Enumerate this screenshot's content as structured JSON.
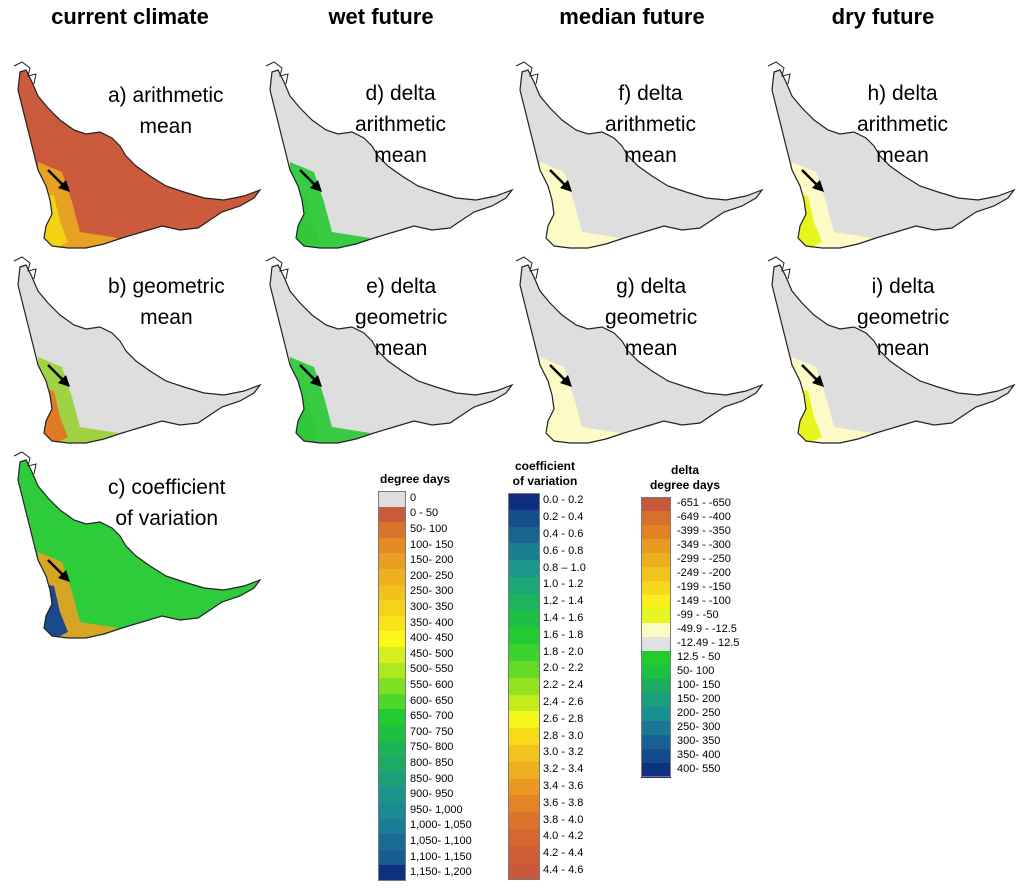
{
  "column_titles": [
    "current climate",
    "wet future",
    "median future",
    "dry future"
  ],
  "panels": [
    {
      "id": "a",
      "lines": [
        "a) arithmetic",
        "mean"
      ],
      "fill": "#cc5a3c",
      "accent": "#f2d414",
      "accent2": "#e8a623"
    },
    {
      "id": "b",
      "lines": [
        "b) geometric",
        "mean"
      ],
      "fill": "#dedede",
      "accent": "#e07a25",
      "accent2": "#9bd23a"
    },
    {
      "id": "c",
      "lines": [
        "c) coefficient",
        "of variation"
      ],
      "fill": "#2ecb3b",
      "accent": "#1a4a8a",
      "accent2": "#e0a225"
    },
    {
      "id": "d",
      "lines": [
        "d) delta",
        "arithmetic",
        "mean"
      ],
      "fill": "#dedede",
      "accent": "#2fc93a",
      "accent2": "#2fc93a"
    },
    {
      "id": "e",
      "lines": [
        "e) delta",
        "geometric",
        "mean"
      ],
      "fill": "#dedede",
      "accent": "#2fc93a",
      "accent2": "#2fc93a"
    },
    {
      "id": "f",
      "lines": [
        "f) delta",
        "arithmetic",
        "mean"
      ],
      "fill": "#dedede",
      "accent": "#fdfbc4",
      "accent2": "#fdfbc4"
    },
    {
      "id": "g",
      "lines": [
        "g) delta",
        "geometric",
        "mean"
      ],
      "fill": "#dedede",
      "accent": "#fdfbc4",
      "accent2": "#fdfbc4"
    },
    {
      "id": "h",
      "lines": [
        "h) delta",
        "arithmetic",
        "mean"
      ],
      "fill": "#dedede",
      "accent": "#e6f51e",
      "accent2": "#fdfbc4"
    },
    {
      "id": "i",
      "lines": [
        "i) delta",
        "geometric",
        "mean"
      ],
      "fill": "#dedede",
      "accent": "#e6f51e",
      "accent2": "#fdfbc4"
    }
  ],
  "legends": [
    {
      "id": "degree-days",
      "title": [
        "degree days"
      ],
      "items": [
        {
          "label": "0",
          "color": "#dedede"
        },
        {
          "label": "0 - 50",
          "color": "#c95b3b"
        },
        {
          "label": "50- 100",
          "color": "#d9742b"
        },
        {
          "label": "100- 150",
          "color": "#e38a24"
        },
        {
          "label": "150- 200",
          "color": "#e99d22"
        },
        {
          "label": "200- 250",
          "color": "#eeb01f"
        },
        {
          "label": "250- 300",
          "color": "#f2c11d"
        },
        {
          "label": "300- 350",
          "color": "#f6d31b"
        },
        {
          "label": "350- 400",
          "color": "#f9e41a"
        },
        {
          "label": "400- 450",
          "color": "#fcf81a"
        },
        {
          "label": "450- 500",
          "color": "#d6ef1c"
        },
        {
          "label": "500- 550",
          "color": "#aee81f"
        },
        {
          "label": "550- 600",
          "color": "#7fe024"
        },
        {
          "label": "600- 650",
          "color": "#4fd62a"
        },
        {
          "label": "650- 700",
          "color": "#22cc30"
        },
        {
          "label": "700- 750",
          "color": "#1fc040"
        },
        {
          "label": "750- 800",
          "color": "#1db553"
        },
        {
          "label": "800- 850",
          "color": "#1caa66"
        },
        {
          "label": "850- 900",
          "color": "#1ba07a"
        },
        {
          "label": "900- 950",
          "color": "#1b958a"
        },
        {
          "label": "950- 1,000",
          "color": "#1b8a92"
        },
        {
          "label": "1,000- 1,050",
          "color": "#1b7c95"
        },
        {
          "label": "1,050- 1,100",
          "color": "#1a6c96"
        },
        {
          "label": "1,100- 1,150",
          "color": "#195d93"
        },
        {
          "label": "1,150- 1,200",
          "color": "#112f80"
        }
      ]
    },
    {
      "id": "coefficient-of-variation",
      "title": [
        "coefficient",
        "of variation"
      ],
      "items": [
        {
          "label": "0.0 - 0.2",
          "color": "#0f2f7e"
        },
        {
          "label": "0.2 - 0.4",
          "color": "#164d8c"
        },
        {
          "label": "0.4 - 0.6",
          "color": "#196592"
        },
        {
          "label": "0.6 - 0.8",
          "color": "#1b7f94"
        },
        {
          "label": "0.8 – 1.0",
          "color": "#1b968a"
        },
        {
          "label": "1.0 - 1.2",
          "color": "#1ca774"
        },
        {
          "label": "1.2 - 1.4",
          "color": "#1db45c"
        },
        {
          "label": "1.4 - 1.6",
          "color": "#1fbf47"
        },
        {
          "label": "1.6 - 1.8",
          "color": "#22ca34"
        },
        {
          "label": "1.8 - 2.0",
          "color": "#3bd22c"
        },
        {
          "label": "2.0 - 2.2",
          "color": "#63da26"
        },
        {
          "label": "2.2 - 2.4",
          "color": "#94e321"
        },
        {
          "label": "2.4 - 2.6",
          "color": "#c3eb1d"
        },
        {
          "label": "2.6 - 2.8",
          "color": "#f6f61a"
        },
        {
          "label": "2.8 - 3.0",
          "color": "#f7db1b"
        },
        {
          "label": "3.0 - 3.2",
          "color": "#f3c31d"
        },
        {
          "label": "3.2 - 3.4",
          "color": "#eeae1f"
        },
        {
          "label": "3.4 - 3.6",
          "color": "#e99922"
        },
        {
          "label": "3.6 - 3.8",
          "color": "#e38526"
        },
        {
          "label": "3.8 - 4.0",
          "color": "#dc732c"
        },
        {
          "label": "4.0 - 4.2",
          "color": "#d66732"
        },
        {
          "label": "4.2 - 4.4",
          "color": "#cf5e37"
        },
        {
          "label": "4.4 - 4.6",
          "color": "#c8573b"
        }
      ]
    },
    {
      "id": "delta-degree-days",
      "title": [
        "delta",
        "degree days"
      ],
      "items": [
        {
          "label": "-651 - -650",
          "color": "#c9573c"
        },
        {
          "label": "-649 - -400",
          "color": "#d7702d"
        },
        {
          "label": "-399 - -350",
          "color": "#e28425"
        },
        {
          "label": "-349 - -300",
          "color": "#e99a22"
        },
        {
          "label": "-299 - -250",
          "color": "#eeaf1f"
        },
        {
          "label": "-249 - -200",
          "color": "#f3c31d"
        },
        {
          "label": "-199 - -150",
          "color": "#f7d91b"
        },
        {
          "label": "-149 - -100",
          "color": "#f9ef1a"
        },
        {
          "label": "-99 - -50",
          "color": "#e6f51e"
        },
        {
          "label": "-49.9 - -12.5",
          "color": "#fdfbc4"
        },
        {
          "label": "-12.49 - 12.5",
          "color": "#e2e2e2"
        },
        {
          "label": "12.5 - 50",
          "color": "#22cc30"
        },
        {
          "label": "50- 100",
          "color": "#1fc040"
        },
        {
          "label": "100- 150",
          "color": "#1cad60"
        },
        {
          "label": "150- 200",
          "color": "#1b9d80"
        },
        {
          "label": "200- 250",
          "color": "#1b8e90"
        },
        {
          "label": "250- 300",
          "color": "#1a7895"
        },
        {
          "label": "300- 350",
          "color": "#185f93"
        },
        {
          "label": "350- 400",
          "color": "#154a8b"
        },
        {
          "label": "400- 550",
          "color": "#102f7f"
        }
      ]
    }
  ]
}
